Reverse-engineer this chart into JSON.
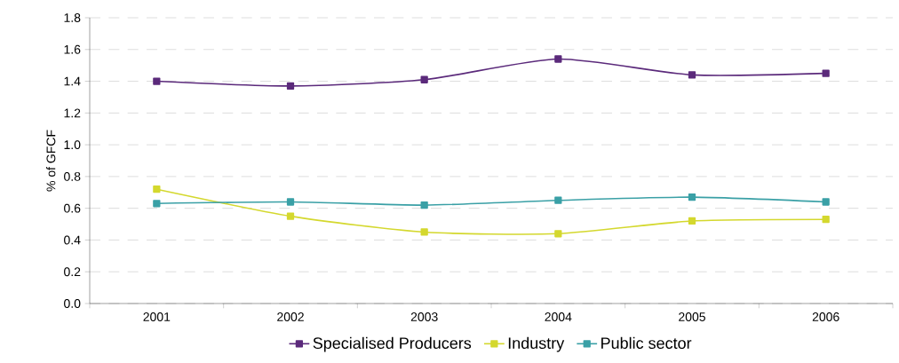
{
  "chart_data": {
    "type": "line",
    "ylabel": "% of GFCF",
    "categories": [
      "2001",
      "2002",
      "2003",
      "2004",
      "2005",
      "2006"
    ],
    "series": [
      {
        "name": "Specialised Producers",
        "color": "#5b2a7b",
        "values": [
          1.4,
          1.37,
          1.41,
          1.54,
          1.44,
          1.45
        ]
      },
      {
        "name": "Industry",
        "color": "#d4d82e",
        "values": [
          0.72,
          0.55,
          0.45,
          0.44,
          0.52,
          0.53
        ]
      },
      {
        "name": "Public sector",
        "color": "#3aa0a6",
        "values": [
          0.63,
          0.64,
          0.62,
          0.65,
          0.67,
          0.64
        ]
      }
    ],
    "ylim": [
      0,
      1.8
    ],
    "yticks": [
      {
        "value": 0,
        "label": "0.0"
      },
      {
        "value": 0.2,
        "label": "0.2"
      },
      {
        "value": 0.4,
        "label": "0.4"
      },
      {
        "value": 0.6,
        "label": "0.6"
      },
      {
        "value": 0.8,
        "label": "0.8"
      },
      {
        "value": 1.0,
        "label": "1.0"
      },
      {
        "value": 1.2,
        "label": "1.2"
      },
      {
        "value": 1.4,
        "label": "1.4"
      },
      {
        "value": 1.6,
        "label": "1.6"
      },
      {
        "value": 1.8,
        "label": "1.8"
      }
    ],
    "grid": "y",
    "legend": "bottom",
    "marker": "square",
    "line_style": "solid"
  }
}
